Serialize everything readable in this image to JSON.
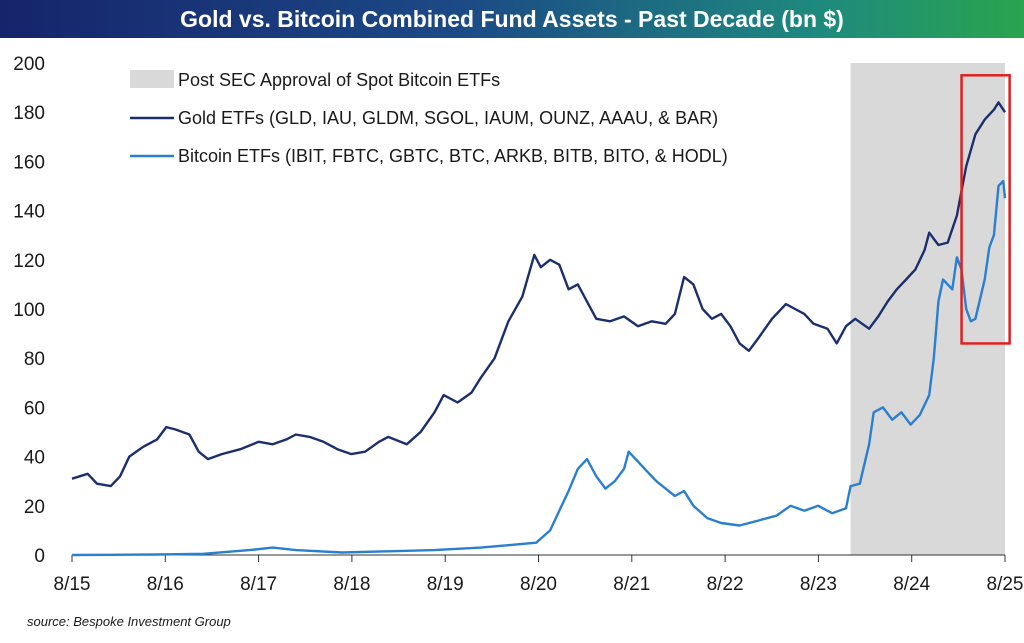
{
  "chart_data": {
    "type": "line",
    "title": "Gold vs. Bitcoin Combined Fund Assets - Past Decade (bn $)",
    "ylim": [
      0,
      200
    ],
    "y_ticks": [
      0,
      20,
      40,
      60,
      80,
      100,
      120,
      140,
      160,
      180,
      200
    ],
    "x_ticks": [
      "8/15",
      "8/16",
      "8/17",
      "8/18",
      "8/19",
      "8/20",
      "8/21",
      "8/22",
      "8/23",
      "8/24",
      "8/25"
    ],
    "x_range": [
      2015.58,
      2025.67
    ],
    "grid": false,
    "legend_position": "top-left",
    "shaded_region": {
      "label": "Post SEC Approval of Spot Bitcoin ETFs",
      "x_start": 2024.0,
      "x_end": 2025.67,
      "color": "#d9d9d9"
    },
    "highlight_box": {
      "x_start": 2025.2,
      "x_end": 2025.72,
      "y_start": 86,
      "y_end": 195,
      "color": "#e02020"
    },
    "series": [
      {
        "name": "Gold ETFs (GLD, IAU, GLDM, SGOL, IAUM, OUNZ, AAAU, & BAR)",
        "color": "#1b2f6e",
        "points": [
          [
            2015.58,
            31
          ],
          [
            2015.75,
            33
          ],
          [
            2015.85,
            29
          ],
          [
            2016.0,
            28
          ],
          [
            2016.1,
            32
          ],
          [
            2016.2,
            40
          ],
          [
            2016.35,
            44
          ],
          [
            2016.5,
            47
          ],
          [
            2016.6,
            52
          ],
          [
            2016.7,
            51
          ],
          [
            2016.85,
            49
          ],
          [
            2016.95,
            42
          ],
          [
            2017.05,
            39
          ],
          [
            2017.2,
            41
          ],
          [
            2017.4,
            43
          ],
          [
            2017.6,
            46
          ],
          [
            2017.75,
            45
          ],
          [
            2017.9,
            47
          ],
          [
            2018.0,
            49
          ],
          [
            2018.15,
            48
          ],
          [
            2018.3,
            46
          ],
          [
            2018.45,
            43
          ],
          [
            2018.6,
            41
          ],
          [
            2018.75,
            42
          ],
          [
            2018.9,
            46
          ],
          [
            2019.0,
            48
          ],
          [
            2019.2,
            45
          ],
          [
            2019.35,
            50
          ],
          [
            2019.5,
            58
          ],
          [
            2019.6,
            65
          ],
          [
            2019.75,
            62
          ],
          [
            2019.9,
            66
          ],
          [
            2020.0,
            72
          ],
          [
            2020.15,
            80
          ],
          [
            2020.3,
            95
          ],
          [
            2020.45,
            105
          ],
          [
            2020.58,
            122
          ],
          [
            2020.65,
            117
          ],
          [
            2020.75,
            120
          ],
          [
            2020.85,
            118
          ],
          [
            2020.95,
            108
          ],
          [
            2021.05,
            110
          ],
          [
            2021.15,
            103
          ],
          [
            2021.25,
            96
          ],
          [
            2021.4,
            95
          ],
          [
            2021.55,
            97
          ],
          [
            2021.7,
            93
          ],
          [
            2021.85,
            95
          ],
          [
            2022.0,
            94
          ],
          [
            2022.1,
            98
          ],
          [
            2022.2,
            113
          ],
          [
            2022.3,
            110
          ],
          [
            2022.4,
            100
          ],
          [
            2022.5,
            96
          ],
          [
            2022.6,
            98
          ],
          [
            2022.7,
            93
          ],
          [
            2022.8,
            86
          ],
          [
            2022.9,
            83
          ],
          [
            2023.0,
            88
          ],
          [
            2023.15,
            96
          ],
          [
            2023.3,
            102
          ],
          [
            2023.4,
            100
          ],
          [
            2023.5,
            98
          ],
          [
            2023.6,
            94
          ],
          [
            2023.75,
            92
          ],
          [
            2023.85,
            86
          ],
          [
            2023.95,
            93
          ],
          [
            2024.05,
            96
          ],
          [
            2024.2,
            92
          ],
          [
            2024.3,
            97
          ],
          [
            2024.4,
            103
          ],
          [
            2024.5,
            108
          ],
          [
            2024.6,
            112
          ],
          [
            2024.7,
            116
          ],
          [
            2024.8,
            124
          ],
          [
            2024.85,
            131
          ],
          [
            2024.95,
            126
          ],
          [
            2025.05,
            127
          ],
          [
            2025.15,
            138
          ],
          [
            2025.25,
            158
          ],
          [
            2025.35,
            171
          ],
          [
            2025.45,
            177
          ],
          [
            2025.55,
            181
          ],
          [
            2025.6,
            184
          ],
          [
            2025.67,
            180
          ]
        ]
      },
      {
        "name": "Bitcoin ETFs (IBIT, FBTC, GBTC, BTC, ARKB, BITB, BITO, & HODL)",
        "color": "#2a7fd0",
        "points": [
          [
            2015.58,
            0
          ],
          [
            2016.0,
            0.1
          ],
          [
            2016.5,
            0.2
          ],
          [
            2017.0,
            0.5
          ],
          [
            2017.5,
            2
          ],
          [
            2017.75,
            3
          ],
          [
            2018.0,
            2
          ],
          [
            2018.5,
            1
          ],
          [
            2019.0,
            1.5
          ],
          [
            2019.5,
            2
          ],
          [
            2020.0,
            3
          ],
          [
            2020.3,
            4
          ],
          [
            2020.6,
            5
          ],
          [
            2020.75,
            10
          ],
          [
            2020.85,
            18
          ],
          [
            2020.95,
            26
          ],
          [
            2021.05,
            35
          ],
          [
            2021.15,
            39
          ],
          [
            2021.25,
            32
          ],
          [
            2021.35,
            27
          ],
          [
            2021.45,
            30
          ],
          [
            2021.55,
            35
          ],
          [
            2021.6,
            42
          ],
          [
            2021.7,
            38
          ],
          [
            2021.8,
            34
          ],
          [
            2021.9,
            30
          ],
          [
            2022.0,
            27
          ],
          [
            2022.1,
            24
          ],
          [
            2022.2,
            26
          ],
          [
            2022.3,
            20
          ],
          [
            2022.45,
            15
          ],
          [
            2022.6,
            13
          ],
          [
            2022.8,
            12
          ],
          [
            2023.0,
            14
          ],
          [
            2023.2,
            16
          ],
          [
            2023.35,
            20
          ],
          [
            2023.5,
            18
          ],
          [
            2023.65,
            20
          ],
          [
            2023.8,
            17
          ],
          [
            2023.95,
            19
          ],
          [
            2024.0,
            28
          ],
          [
            2024.1,
            29
          ],
          [
            2024.2,
            45
          ],
          [
            2024.25,
            58
          ],
          [
            2024.35,
            60
          ],
          [
            2024.45,
            55
          ],
          [
            2024.55,
            58
          ],
          [
            2024.65,
            53
          ],
          [
            2024.75,
            57
          ],
          [
            2024.85,
            65
          ],
          [
            2024.9,
            80
          ],
          [
            2024.95,
            103
          ],
          [
            2025.0,
            112
          ],
          [
            2025.1,
            108
          ],
          [
            2025.15,
            121
          ],
          [
            2025.2,
            116
          ],
          [
            2025.25,
            100
          ],
          [
            2025.3,
            95
          ],
          [
            2025.35,
            96
          ],
          [
            2025.45,
            112
          ],
          [
            2025.5,
            125
          ],
          [
            2025.55,
            130
          ],
          [
            2025.6,
            150
          ],
          [
            2025.65,
            152
          ],
          [
            2025.67,
            145
          ]
        ]
      }
    ]
  },
  "source": "source: Bespoke Investment Group"
}
